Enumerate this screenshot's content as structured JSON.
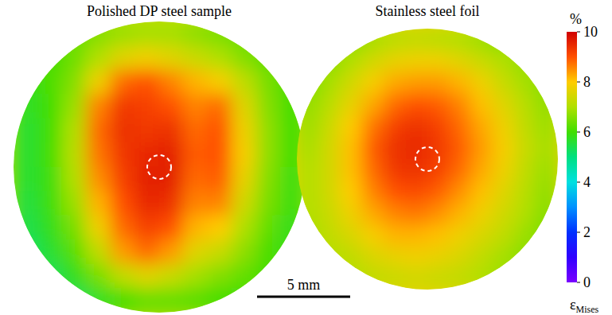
{
  "chart_data": [
    {
      "type": "heatmap",
      "title": "Polished DP steel sample",
      "values": [
        [
          null,
          null,
          6.3,
          6.6,
          6.8,
          6.9,
          6.9,
          6.7,
          6.5,
          6.3,
          null,
          null
        ],
        [
          null,
          6.0,
          6.4,
          7.0,
          7.6,
          7.8,
          7.6,
          7.3,
          7.0,
          6.6,
          6.2,
          null
        ],
        [
          5.8,
          6.1,
          6.6,
          7.8,
          8.8,
          9.0,
          8.6,
          8.2,
          7.9,
          7.2,
          6.5,
          6.0
        ],
        [
          5.7,
          6.0,
          6.8,
          8.6,
          9.3,
          9.2,
          9.0,
          8.6,
          8.8,
          7.6,
          6.6,
          6.0
        ],
        [
          5.6,
          6.0,
          7.0,
          8.8,
          9.4,
          9.3,
          9.4,
          8.8,
          9.0,
          7.8,
          6.7,
          6.0
        ],
        [
          5.6,
          6.0,
          7.1,
          8.7,
          9.3,
          9.5,
          9.6,
          8.9,
          9.0,
          7.9,
          6.7,
          6.0
        ],
        [
          5.6,
          5.9,
          7.0,
          8.5,
          9.2,
          9.6,
          9.6,
          8.8,
          8.9,
          7.7,
          6.6,
          5.9
        ],
        [
          5.5,
          5.9,
          6.8,
          8.2,
          9.0,
          9.5,
          9.4,
          8.6,
          8.6,
          7.4,
          6.5,
          5.9
        ],
        [
          5.4,
          5.8,
          6.5,
          7.8,
          8.8,
          9.2,
          9.0,
          8.2,
          8.0,
          7.0,
          6.3,
          5.8
        ],
        [
          5.2,
          5.6,
          6.2,
          7.2,
          8.4,
          8.8,
          8.4,
          7.6,
          7.3,
          6.7,
          6.1,
          5.8
        ],
        [
          null,
          5.3,
          5.8,
          6.5,
          7.2,
          7.6,
          7.3,
          6.9,
          6.6,
          6.3,
          6.0,
          null
        ],
        [
          null,
          null,
          5.3,
          5.7,
          6.0,
          6.3,
          6.3,
          6.2,
          6.0,
          5.9,
          null,
          null
        ]
      ]
    },
    {
      "type": "heatmap",
      "title": "Stainless steel foil",
      "values": [
        [
          null,
          null,
          6.6,
          6.9,
          7.1,
          7.2,
          7.1,
          7.0,
          6.8,
          6.6,
          null,
          null
        ],
        [
          null,
          6.6,
          7.0,
          7.4,
          7.7,
          7.8,
          7.8,
          7.6,
          7.3,
          7.0,
          6.7,
          null
        ],
        [
          6.5,
          6.9,
          7.4,
          7.9,
          8.3,
          8.4,
          8.4,
          8.2,
          7.8,
          7.3,
          6.9,
          6.6
        ],
        [
          6.7,
          7.1,
          7.7,
          8.3,
          8.8,
          9.0,
          8.9,
          8.6,
          8.1,
          7.6,
          7.1,
          6.7
        ],
        [
          6.8,
          7.3,
          8.0,
          8.7,
          9.2,
          9.4,
          9.2,
          8.8,
          8.3,
          7.8,
          7.2,
          6.8
        ],
        [
          6.9,
          7.4,
          8.1,
          8.9,
          9.4,
          9.5,
          9.3,
          8.9,
          8.4,
          7.9,
          7.3,
          6.9
        ],
        [
          7.0,
          7.4,
          8.1,
          8.8,
          9.3,
          9.4,
          9.2,
          8.8,
          8.3,
          7.8,
          7.2,
          6.8
        ],
        [
          7.0,
          7.4,
          8.0,
          8.6,
          9.0,
          9.1,
          8.9,
          8.5,
          8.1,
          7.6,
          7.1,
          6.7
        ],
        [
          7.0,
          7.3,
          7.8,
          8.3,
          8.6,
          8.7,
          8.5,
          8.2,
          7.8,
          7.4,
          7.0,
          6.6
        ],
        [
          6.9,
          7.2,
          7.5,
          7.9,
          8.2,
          8.2,
          8.1,
          7.8,
          7.5,
          7.2,
          6.8,
          6.5
        ],
        [
          null,
          7.0,
          7.2,
          7.5,
          7.7,
          7.8,
          7.7,
          7.5,
          7.2,
          6.9,
          6.6,
          null
        ],
        [
          null,
          null,
          7.0,
          7.2,
          7.3,
          7.4,
          7.3,
          7.2,
          7.0,
          6.8,
          null,
          null
        ]
      ]
    }
  ],
  "colorbar": {
    "range": [
      0,
      10
    ],
    "ticks": [
      0,
      2,
      4,
      6,
      8,
      10
    ],
    "unit": "%",
    "label": "εMises"
  },
  "scale_bar": {
    "value": 5,
    "label": "5 mm"
  }
}
